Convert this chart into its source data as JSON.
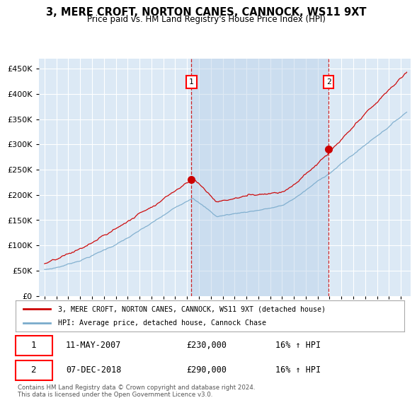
{
  "title": "3, MERE CROFT, NORTON CANES, CANNOCK, WS11 9XT",
  "subtitle": "Price paid vs. HM Land Registry's House Price Index (HPI)",
  "legend_label_red": "3, MERE CROFT, NORTON CANES, CANNOCK, WS11 9XT (detached house)",
  "legend_label_blue": "HPI: Average price, detached house, Cannock Chase",
  "annotation1": {
    "label": "1",
    "date": "11-MAY-2007",
    "price": 230000,
    "hpi": "16% ↑ HPI"
  },
  "annotation2": {
    "label": "2",
    "date": "07-DEC-2018",
    "price": 290000,
    "hpi": "16% ↑ HPI"
  },
  "footnote": "Contains HM Land Registry data © Crown copyright and database right 2024.\nThis data is licensed under the Open Government Licence v3.0.",
  "ylim": [
    0,
    470000
  ],
  "yticks": [
    0,
    50000,
    100000,
    150000,
    200000,
    250000,
    300000,
    350000,
    400000,
    450000
  ],
  "plot_bg": "#dce9f5",
  "shade_color": "#ccddf0",
  "red_color": "#cc0000",
  "blue_color": "#7aabcc",
  "marker1_x": 2007.37,
  "marker1_y": 230000,
  "marker2_x": 2018.92,
  "marker2_y": 290000,
  "xlim_left": 1994.5,
  "xlim_right": 2025.8
}
